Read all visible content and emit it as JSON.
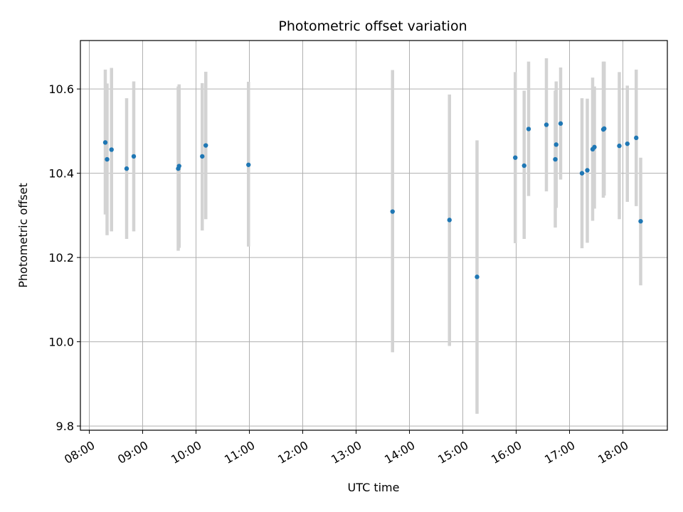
{
  "chart_data": {
    "type": "scatter",
    "title": "Photometric offset variation",
    "xlabel": "UTC time",
    "ylabel": "Photometric offset",
    "xlim": [
      "07:50",
      "18:50"
    ],
    "ylim": [
      9.79,
      10.715
    ],
    "x_ticks": [
      "08:00",
      "09:00",
      "10:00",
      "11:00",
      "12:00",
      "13:00",
      "14:00",
      "15:00",
      "16:00",
      "17:00",
      "18:00"
    ],
    "y_ticks": [
      9.8,
      10.0,
      10.2,
      10.4,
      10.6
    ],
    "y_tick_labels": [
      "9.8",
      "10.0",
      "10.2",
      "10.4",
      "10.6"
    ],
    "grid": true,
    "colors": {
      "point": "#1f77b4",
      "errorbar": "#d3d3d3",
      "grid": "#b0b0b0"
    },
    "points": [
      {
        "time": "08:18",
        "y": 10.473,
        "low": 10.302,
        "high": 10.646
      },
      {
        "time": "08:20",
        "y": 10.433,
        "low": 10.253,
        "high": 10.613
      },
      {
        "time": "08:25",
        "y": 10.456,
        "low": 10.262,
        "high": 10.65
      },
      {
        "time": "08:42",
        "y": 10.411,
        "low": 10.244,
        "high": 10.578
      },
      {
        "time": "08:50",
        "y": 10.44,
        "low": 10.262,
        "high": 10.618
      },
      {
        "time": "09:40",
        "y": 10.411,
        "low": 10.216,
        "high": 10.606
      },
      {
        "time": "09:41",
        "y": 10.417,
        "low": 10.223,
        "high": 10.611
      },
      {
        "time": "10:07",
        "y": 10.44,
        "low": 10.264,
        "high": 10.614
      },
      {
        "time": "10:11",
        "y": 10.466,
        "low": 10.291,
        "high": 10.641
      },
      {
        "time": "10:59",
        "y": 10.42,
        "low": 10.226,
        "high": 10.617
      },
      {
        "time": "13:41",
        "y": 10.309,
        "low": 9.975,
        "high": 10.645
      },
      {
        "time": "14:45",
        "y": 10.289,
        "low": 9.99,
        "high": 10.587
      },
      {
        "time": "15:16",
        "y": 10.154,
        "low": 9.829,
        "high": 10.478
      },
      {
        "time": "15:59",
        "y": 10.437,
        "low": 10.234,
        "high": 10.64
      },
      {
        "time": "16:09",
        "y": 10.418,
        "low": 10.244,
        "high": 10.596
      },
      {
        "time": "16:14",
        "y": 10.505,
        "low": 10.346,
        "high": 10.665
      },
      {
        "time": "16:34",
        "y": 10.515,
        "low": 10.357,
        "high": 10.673
      },
      {
        "time": "16:44",
        "y": 10.433,
        "low": 10.271,
        "high": 10.596
      },
      {
        "time": "16:45",
        "y": 10.468,
        "low": 10.318,
        "high": 10.618
      },
      {
        "time": "16:50",
        "y": 10.518,
        "low": 10.385,
        "high": 10.651
      },
      {
        "time": "17:14",
        "y": 10.4,
        "low": 10.222,
        "high": 10.578
      },
      {
        "time": "17:20",
        "y": 10.407,
        "low": 10.235,
        "high": 10.577
      },
      {
        "time": "17:26",
        "y": 10.457,
        "low": 10.287,
        "high": 10.627
      },
      {
        "time": "17:28",
        "y": 10.462,
        "low": 10.316,
        "high": 10.606
      },
      {
        "time": "17:38",
        "y": 10.504,
        "low": 10.342,
        "high": 10.665
      },
      {
        "time": "17:39",
        "y": 10.506,
        "low": 10.347,
        "high": 10.665
      },
      {
        "time": "17:56",
        "y": 10.465,
        "low": 10.291,
        "high": 10.64
      },
      {
        "time": "18:05",
        "y": 10.47,
        "low": 10.332,
        "high": 10.608
      },
      {
        "time": "18:15",
        "y": 10.484,
        "low": 10.322,
        "high": 10.646
      },
      {
        "time": "18:20",
        "y": 10.286,
        "low": 10.134,
        "high": 10.437
      }
    ]
  }
}
